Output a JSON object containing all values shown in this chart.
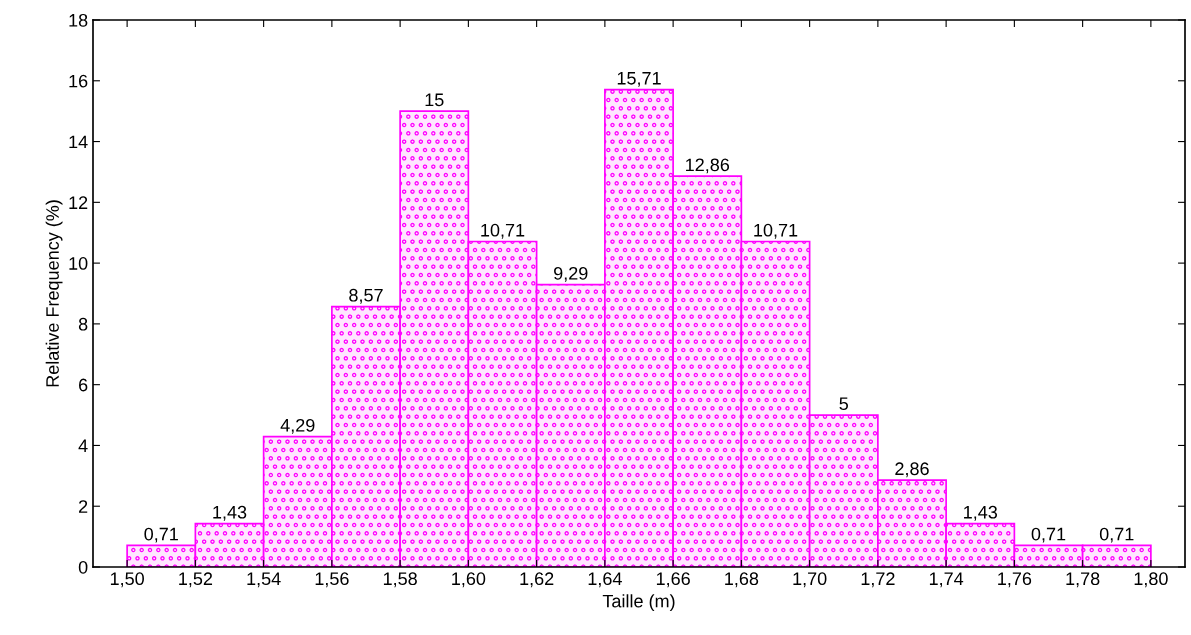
{
  "chart_data": {
    "type": "histogram",
    "xlabel": "Taille (m)",
    "ylabel": "Relative Frequency (%)",
    "bins": [
      1.5,
      1.52,
      1.54,
      1.56,
      1.58,
      1.6,
      1.62,
      1.64,
      1.66,
      1.68,
      1.7,
      1.72,
      1.74,
      1.76,
      1.78,
      1.8
    ],
    "values": [
      0.71,
      1.43,
      4.29,
      8.57,
      15,
      10.71,
      9.29,
      15.71,
      12.86,
      10.71,
      5,
      2.86,
      1.43,
      0.71,
      0.71
    ],
    "value_labels": [
      "0,71",
      "1,43",
      "4,29",
      "8,57",
      "15",
      "10,71",
      "9,29",
      "15,71",
      "12,86",
      "10,71",
      "5",
      "2,86",
      "1,43",
      "0,71",
      "0,71"
    ],
    "color": "#ff00ff",
    "xlim": [
      1.49,
      1.81
    ],
    "xticks": [
      {
        "value": 1.5,
        "label": "1,50"
      },
      {
        "value": 1.52,
        "label": "1,52"
      },
      {
        "value": 1.54,
        "label": "1,54"
      },
      {
        "value": 1.56,
        "label": "1,56"
      },
      {
        "value": 1.58,
        "label": "1,58"
      },
      {
        "value": 1.6,
        "label": "1,60"
      },
      {
        "value": 1.62,
        "label": "1,62"
      },
      {
        "value": 1.64,
        "label": "1,64"
      },
      {
        "value": 1.66,
        "label": "1,66"
      },
      {
        "value": 1.68,
        "label": "1,68"
      },
      {
        "value": 1.7,
        "label": "1,70"
      },
      {
        "value": 1.72,
        "label": "1,72"
      },
      {
        "value": 1.74,
        "label": "1,74"
      },
      {
        "value": 1.76,
        "label": "1,76"
      },
      {
        "value": 1.78,
        "label": "1,78"
      },
      {
        "value": 1.8,
        "label": "1,80"
      }
    ],
    "ylim": [
      0,
      18
    ],
    "yticks": [
      0,
      2,
      4,
      6,
      8,
      10,
      12,
      14,
      16,
      18
    ],
    "grid": false
  }
}
